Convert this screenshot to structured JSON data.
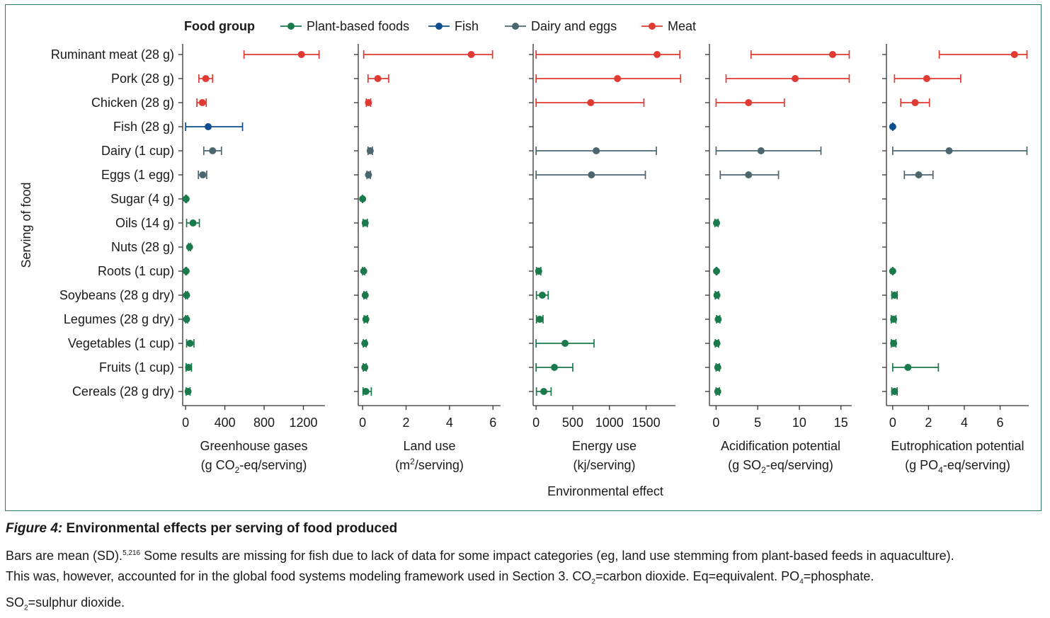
{
  "caption": {
    "figure_label": "Figure 4:",
    "title": "Environmental effects per serving of food produced",
    "p1a": "Bars are mean (SD).",
    "refs": "5,216",
    "p1b": " Some results are missing for fish due to lack of data for some impact categories (eg, land use stemming from plant-based feeds in aquaculture).",
    "p2a": "This was, however, accounted for in the global food systems modeling framework used in Section 3. CO",
    "co2_sub": "2",
    "p2b": "=carbon dioxide. Eq=equivalent. PO",
    "po4_sub": "4",
    "p2c": "=phosphate.",
    "p3a": "SO",
    "so2_sub": "2",
    "p3b": "=sulphur dioxide."
  },
  "chart_data": {
    "type": "dot-errorbar",
    "legend_title": "Food group",
    "groups": [
      {
        "name": "Plant-based foods",
        "color": "#1a7a4c"
      },
      {
        "name": "Fish",
        "color": "#0d4f8e"
      },
      {
        "name": "Dairy and eggs",
        "color": "#4c6670"
      },
      {
        "name": "Meat",
        "color": "#e03a32"
      }
    ],
    "ylabel": "Serving of food",
    "xlabel": "Environmental effect",
    "foods": [
      {
        "label": "Ruminant meat (28 g)",
        "group": 3
      },
      {
        "label": "Pork (28 g)",
        "group": 3
      },
      {
        "label": "Chicken (28 g)",
        "group": 3
      },
      {
        "label": "Fish (28 g)",
        "group": 1
      },
      {
        "label": "Dairy (1 cup)",
        "group": 2
      },
      {
        "label": "Eggs (1 egg)",
        "group": 2
      },
      {
        "label": "Sugar (4 g)",
        "group": 0
      },
      {
        "label": "Oils (14 g)",
        "group": 0
      },
      {
        "label": "Nuts (28 g)",
        "group": 0
      },
      {
        "label": "Roots (1 cup)",
        "group": 0
      },
      {
        "label": "Soybeans (28 g dry)",
        "group": 0
      },
      {
        "label": "Legumes (28 g dry)",
        "group": 0
      },
      {
        "label": "Vegetables (1 cup)",
        "group": 0
      },
      {
        "label": "Fruits (1 cup)",
        "group": 0
      },
      {
        "label": "Cereals (28 g dry)",
        "group": 0
      }
    ],
    "panels": [
      {
        "title": "Greenhouse gases",
        "unit_pre": "(g CO",
        "unit_sub": "2",
        "unit_sup": "",
        "unit_post": "-eq/serving)",
        "xlim": [
          -30,
          1420
        ],
        "ticks": [
          0,
          400,
          800,
          1200
        ],
        "tick_labels": [
          "0",
          "400",
          "800",
          "1200"
        ],
        "points": [
          {
            "mean": 1180,
            "lo": 595,
            "hi": 1360
          },
          {
            "mean": 205,
            "lo": 135,
            "hi": 275
          },
          {
            "mean": 170,
            "lo": 115,
            "hi": 210
          },
          {
            "mean": 230,
            "lo": 0,
            "hi": 580
          },
          {
            "mean": 275,
            "lo": 185,
            "hi": 365
          },
          {
            "mean": 175,
            "lo": 130,
            "hi": 215
          },
          {
            "mean": 5,
            "lo": 0,
            "hi": 10
          },
          {
            "mean": 75,
            "lo": 10,
            "hi": 140
          },
          {
            "mean": 40,
            "lo": 30,
            "hi": 50
          },
          {
            "mean": 5,
            "lo": 0,
            "hi": 10
          },
          {
            "mean": 10,
            "lo": 0,
            "hi": 20
          },
          {
            "mean": 10,
            "lo": 0,
            "hi": 20
          },
          {
            "mean": 45,
            "lo": 10,
            "hi": 85
          },
          {
            "mean": 30,
            "lo": 5,
            "hi": 60
          },
          {
            "mean": 25,
            "lo": 5,
            "hi": 45
          }
        ]
      },
      {
        "title": "Land use",
        "unit_pre": "(m",
        "unit_sub": "",
        "unit_sup": "2",
        "unit_post": "/serving)",
        "xlim": [
          -0.2,
          6.35
        ],
        "ticks": [
          0,
          2,
          4,
          6
        ],
        "tick_labels": [
          "0",
          "2",
          "4",
          "6"
        ],
        "points": [
          {
            "mean": 5.0,
            "lo": 0.05,
            "hi": 5.98
          },
          {
            "mean": 0.7,
            "lo": 0.25,
            "hi": 1.2
          },
          {
            "mean": 0.27,
            "lo": 0.17,
            "hi": 0.37
          },
          null,
          {
            "mean": 0.35,
            "lo": 0.25,
            "hi": 0.45
          },
          {
            "mean": 0.27,
            "lo": 0.2,
            "hi": 0.36
          },
          {
            "mean": 0.0,
            "lo": 0.0,
            "hi": 0.0
          },
          {
            "mean": 0.12,
            "lo": 0.02,
            "hi": 0.22
          },
          null,
          {
            "mean": 0.05,
            "lo": 0.0,
            "hi": 0.1
          },
          {
            "mean": 0.12,
            "lo": 0.06,
            "hi": 0.18
          },
          {
            "mean": 0.15,
            "lo": 0.07,
            "hi": 0.23
          },
          {
            "mean": 0.1,
            "lo": 0.03,
            "hi": 0.17
          },
          {
            "mean": 0.1,
            "lo": 0.03,
            "hi": 0.17
          },
          {
            "mean": 0.15,
            "lo": 0.02,
            "hi": 0.4
          }
        ]
      },
      {
        "title": "Energy use",
        "unit_pre": "(kj/serving)",
        "unit_sub": "",
        "unit_sup": "",
        "unit_post": "",
        "xlim": [
          -40,
          1900
        ],
        "ticks": [
          0,
          500,
          1000,
          1500
        ],
        "tick_labels": [
          "0",
          "500",
          "1000",
          "1500"
        ],
        "points": [
          {
            "mean": 1650,
            "lo": 0,
            "hi": 1960
          },
          {
            "mean": 1110,
            "lo": 0,
            "hi": 1970
          },
          {
            "mean": 745,
            "lo": 0,
            "hi": 1470
          },
          null,
          {
            "mean": 820,
            "lo": 0,
            "hi": 1640
          },
          {
            "mean": 755,
            "lo": 0,
            "hi": 1490
          },
          null,
          null,
          null,
          {
            "mean": 35,
            "lo": 5,
            "hi": 65
          },
          {
            "mean": 85,
            "lo": 5,
            "hi": 165
          },
          {
            "mean": 50,
            "lo": 5,
            "hi": 95
          },
          {
            "mean": 395,
            "lo": 0,
            "hi": 790
          },
          {
            "mean": 250,
            "lo": 0,
            "hi": 500
          },
          {
            "mean": 105,
            "lo": 5,
            "hi": 205
          }
        ]
      },
      {
        "title": "Acidification potential",
        "unit_pre": "(g SO",
        "unit_sub": "2",
        "unit_sup": "",
        "unit_post": "-eq/serving)",
        "xlim": [
          -0.8,
          16.3
        ],
        "ticks": [
          0,
          5,
          10,
          15
        ],
        "tick_labels": [
          "0",
          "5",
          "10",
          "15"
        ],
        "points": [
          {
            "mean": 14.0,
            "lo": 4.2,
            "hi": 16.0
          },
          {
            "mean": 9.5,
            "lo": 1.2,
            "hi": 16.0
          },
          {
            "mean": 3.9,
            "lo": 0.0,
            "hi": 8.2
          },
          null,
          {
            "mean": 5.4,
            "lo": 0.0,
            "hi": 12.6
          },
          {
            "mean": 3.9,
            "lo": 0.5,
            "hi": 7.5
          },
          null,
          {
            "mean": 0.05,
            "lo": -0.15,
            "hi": 0.25
          },
          null,
          {
            "mean": 0.05,
            "lo": 0.0,
            "hi": 0.1
          },
          {
            "mean": 0.1,
            "lo": -0.1,
            "hi": 0.3
          },
          {
            "mean": 0.25,
            "lo": 0.05,
            "hi": 0.45
          },
          {
            "mean": 0.1,
            "lo": -0.1,
            "hi": 0.3
          },
          {
            "mean": 0.2,
            "lo": 0.0,
            "hi": 0.4
          },
          {
            "mean": 0.2,
            "lo": 0.0,
            "hi": 0.4
          }
        ]
      },
      {
        "title": "Eutrophication potential",
        "unit_pre": "(g PO",
        "unit_sub": "4",
        "unit_sup": "",
        "unit_post": "-eq/serving)",
        "xlim": [
          -0.35,
          7.6
        ],
        "ticks": [
          0,
          2,
          4,
          6
        ],
        "tick_labels": [
          "0",
          "2",
          "4",
          "6"
        ],
        "points": [
          {
            "mean": 6.8,
            "lo": 2.6,
            "hi": 7.5
          },
          {
            "mean": 1.9,
            "lo": 0.1,
            "hi": 3.8
          },
          {
            "mean": 1.25,
            "lo": 0.45,
            "hi": 2.05
          },
          {
            "mean": 0.0,
            "lo": 0.0,
            "hi": 0.0
          },
          {
            "mean": 3.15,
            "lo": 0.0,
            "hi": 7.5
          },
          {
            "mean": 1.45,
            "lo": 0.65,
            "hi": 2.25
          },
          null,
          null,
          null,
          {
            "mean": 0.0,
            "lo": 0.0,
            "hi": 0.0
          },
          {
            "mean": 0.1,
            "lo": -0.05,
            "hi": 0.25
          },
          {
            "mean": 0.05,
            "lo": -0.08,
            "hi": 0.18
          },
          {
            "mean": 0.05,
            "lo": -0.08,
            "hi": 0.18
          },
          {
            "mean": 0.85,
            "lo": 0.0,
            "hi": 2.55
          },
          {
            "mean": 0.1,
            "lo": -0.05,
            "hi": 0.25
          }
        ]
      }
    ]
  }
}
